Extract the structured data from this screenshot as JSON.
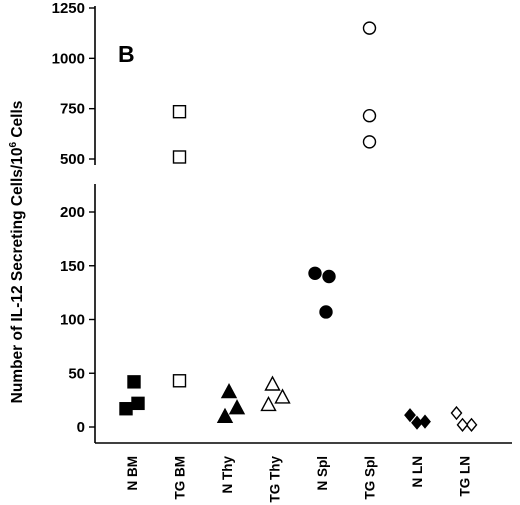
{
  "chart_data": {
    "type": "scatter",
    "panel_label": "B",
    "ylabel": {
      "main": "Number of IL-12 Secreting Cells/10",
      "superscript": "6",
      "suffix": " Cells"
    },
    "axis_break": true,
    "ylim_lower": [
      0,
      220
    ],
    "ylim_upper": [
      500,
      1250
    ],
    "yticks_lower": [
      "0",
      "50",
      "100",
      "150",
      "200"
    ],
    "yticks_upper": [
      "500",
      "750",
      "1000",
      "1250"
    ],
    "categories": [
      "N BM",
      "TG BM",
      "N Thy",
      "TG Thy",
      "N Spl",
      "TG Spl",
      "N LN",
      "TG LN"
    ],
    "series": [
      {
        "category": "N BM",
        "marker": "square",
        "filled": true,
        "values": [
          42,
          17,
          22
        ]
      },
      {
        "category": "TG BM",
        "marker": "square",
        "filled": false,
        "values": [
          735,
          510,
          43
        ]
      },
      {
        "category": "N Thy",
        "marker": "triangle",
        "filled": true,
        "values": [
          33,
          18,
          10
        ]
      },
      {
        "category": "TG Thy",
        "marker": "triangle",
        "filled": false,
        "values": [
          40,
          28,
          21
        ]
      },
      {
        "category": "N Spl",
        "marker": "circle",
        "filled": true,
        "values": [
          143,
          140,
          107
        ]
      },
      {
        "category": "TG Spl",
        "marker": "circle",
        "filled": false,
        "values": [
          1150,
          715,
          585
        ]
      },
      {
        "category": "N LN",
        "marker": "diamond",
        "filled": true,
        "values": [
          11,
          5,
          4
        ]
      },
      {
        "category": "TG LN",
        "marker": "diamond",
        "filled": false,
        "values": [
          13,
          2,
          2
        ]
      }
    ]
  }
}
